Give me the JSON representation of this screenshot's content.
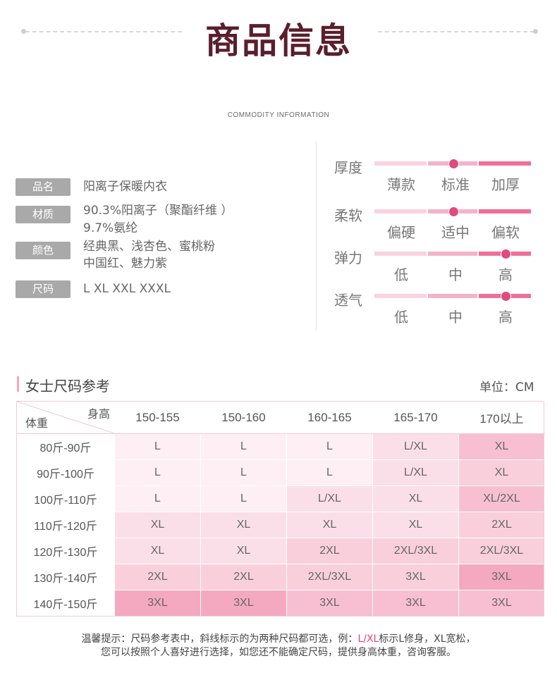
{
  "header": {
    "title": "商品信息",
    "subtitle": "COMMODITY INFORMATION"
  },
  "product": {
    "rows": [
      {
        "tag": "品名",
        "lines": [
          "阳离子保暖内衣"
        ]
      },
      {
        "tag": "材质",
        "lines": [
          "90.3%阳离子（聚酯纤维 ）",
          "9.7%氨纶"
        ]
      },
      {
        "tag": "颜色",
        "lines": [
          "经典黑、浅杏色、蜜桃粉",
          "中国红、魅力紫"
        ]
      },
      {
        "tag": "尺码",
        "lines": [
          "L XL XXL XXXL"
        ]
      }
    ]
  },
  "attributes": [
    {
      "name": "厚度",
      "levels": [
        "薄款",
        "标准",
        "加厚"
      ],
      "selected": 1,
      "knob": 0.5
    },
    {
      "name": "柔软",
      "levels": [
        "偏硬",
        "适中",
        "偏软"
      ],
      "selected": 1,
      "knob": 0.5
    },
    {
      "name": "弹力",
      "levels": [
        "低",
        "中",
        "高"
      ],
      "selected": 2,
      "knob": 0.83
    },
    {
      "name": "透气",
      "levels": [
        "低",
        "中",
        "高"
      ],
      "selected": 2,
      "knob": 0.83
    }
  ],
  "colors": {
    "title": "#5a1e2c",
    "accent": "#e04b7d",
    "tag_bg": "#a9a9a9",
    "track_light": "#f8d3df",
    "track_mid": "#f4b3c8",
    "track_dark": "#ee6f98"
  },
  "size_chart": {
    "title": "女士尺码参考",
    "unit": "单位：CM",
    "corner_top": "身高",
    "corner_bottom": "体重",
    "heights": [
      "150-155",
      "150-160",
      "160-165",
      "165-170",
      "170以上"
    ],
    "weights": [
      "80斤-90斤",
      "90斤-100斤",
      "100斤-110斤",
      "110斤-120斤",
      "120斤-130斤",
      "130斤-140斤",
      "140斤-150斤"
    ],
    "cells": [
      [
        "L",
        "L",
        "L",
        "L/XL",
        "XL"
      ],
      [
        "L",
        "L",
        "L",
        "L/XL",
        "XL"
      ],
      [
        "L",
        "L",
        "L/XL",
        "XL",
        "XL/2XL"
      ],
      [
        "XL",
        "XL",
        "XL",
        "XL",
        "2XL"
      ],
      [
        "XL",
        "XL",
        "2XL",
        "2XL/3XL",
        "2XL/3XL"
      ],
      [
        "2XL",
        "2XL",
        "2XL/3XL",
        "3XL",
        "3XL"
      ],
      [
        "3XL",
        "3XL",
        "3XL",
        "3XL",
        "3XL"
      ]
    ],
    "shade": [
      [
        0,
        0,
        0,
        1,
        3
      ],
      [
        0,
        0,
        0,
        1,
        2
      ],
      [
        0,
        0,
        1,
        1,
        3
      ],
      [
        1,
        1,
        1,
        1,
        2
      ],
      [
        1,
        1,
        2,
        2,
        2
      ],
      [
        2,
        2,
        2,
        2,
        4
      ],
      [
        4,
        4,
        3,
        3,
        3
      ]
    ],
    "shade_colors": [
      "#fdeff3",
      "#fbdfe8",
      "#f9cfdc",
      "#f7bfd1",
      "#f4a9c0"
    ]
  },
  "notes": {
    "line1_prefix": "温馨提示：尺码参考表中，斜线标示的为两种尺码都可选，例：",
    "line1_highlight": "L/XL",
    "line1_suffix": "标示L修身，XL宽松，",
    "line2": "您可以按照个人喜好进行选择，如您还不能确定尺码，提供身高体重，咨询客服。"
  }
}
